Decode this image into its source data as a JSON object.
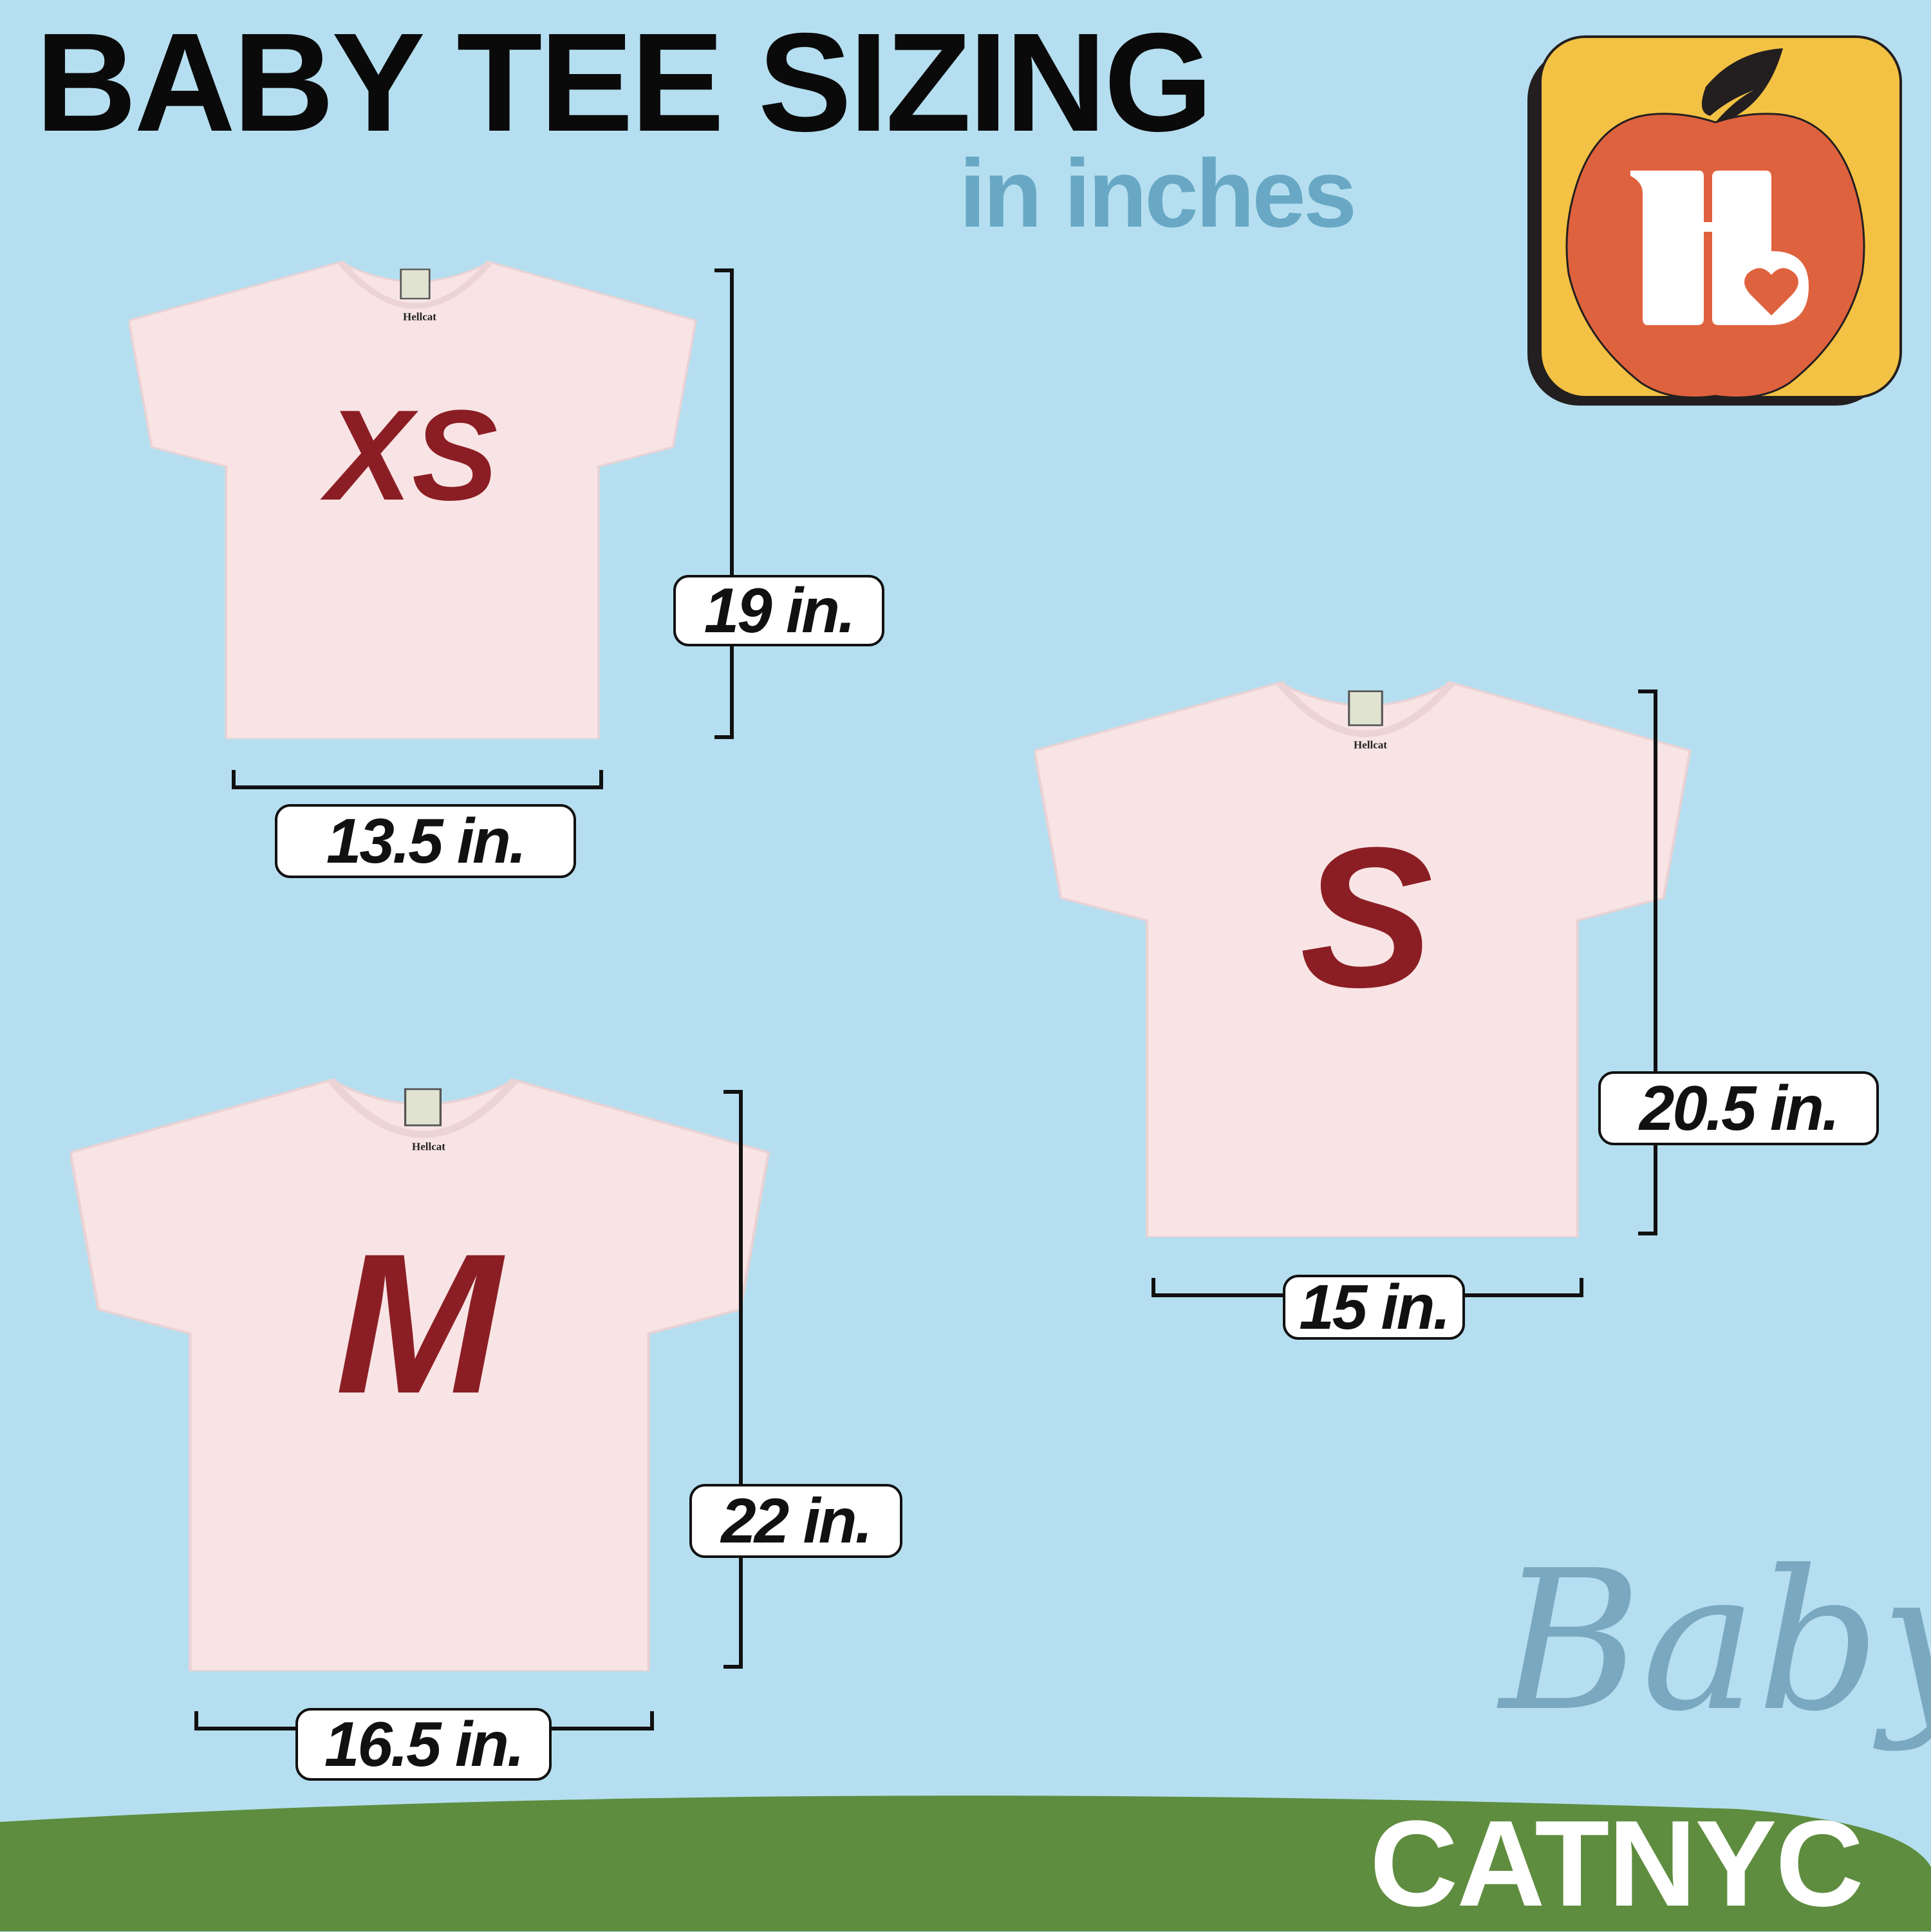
{
  "header": {
    "title": "BABY TEE SIZING",
    "subtitle": "in inches"
  },
  "logo": {
    "name": "apple-heart-h-logo",
    "colors": {
      "tile": "#f3c244",
      "apple": "#df623e",
      "leaf": "#231f20"
    }
  },
  "shirts": [
    {
      "size": "XS",
      "height": "19 in.",
      "width": "13.5 in.",
      "tag": "Hellcat"
    },
    {
      "size": "S",
      "height": "20.5 in.",
      "width": "15 in.",
      "tag": "Hellcat"
    },
    {
      "size": "M",
      "height": "22 in.",
      "width": "16.5 in.",
      "tag": "Hellcat"
    }
  ],
  "brand": {
    "script": "Baby",
    "name": "CATNYC"
  },
  "colors": {
    "background": "#b5dff0",
    "shirt": "#f8e4e4",
    "size_letter": "#8b1e24",
    "ground": "#5e8d3f",
    "subtitle": "#68a8c4"
  }
}
